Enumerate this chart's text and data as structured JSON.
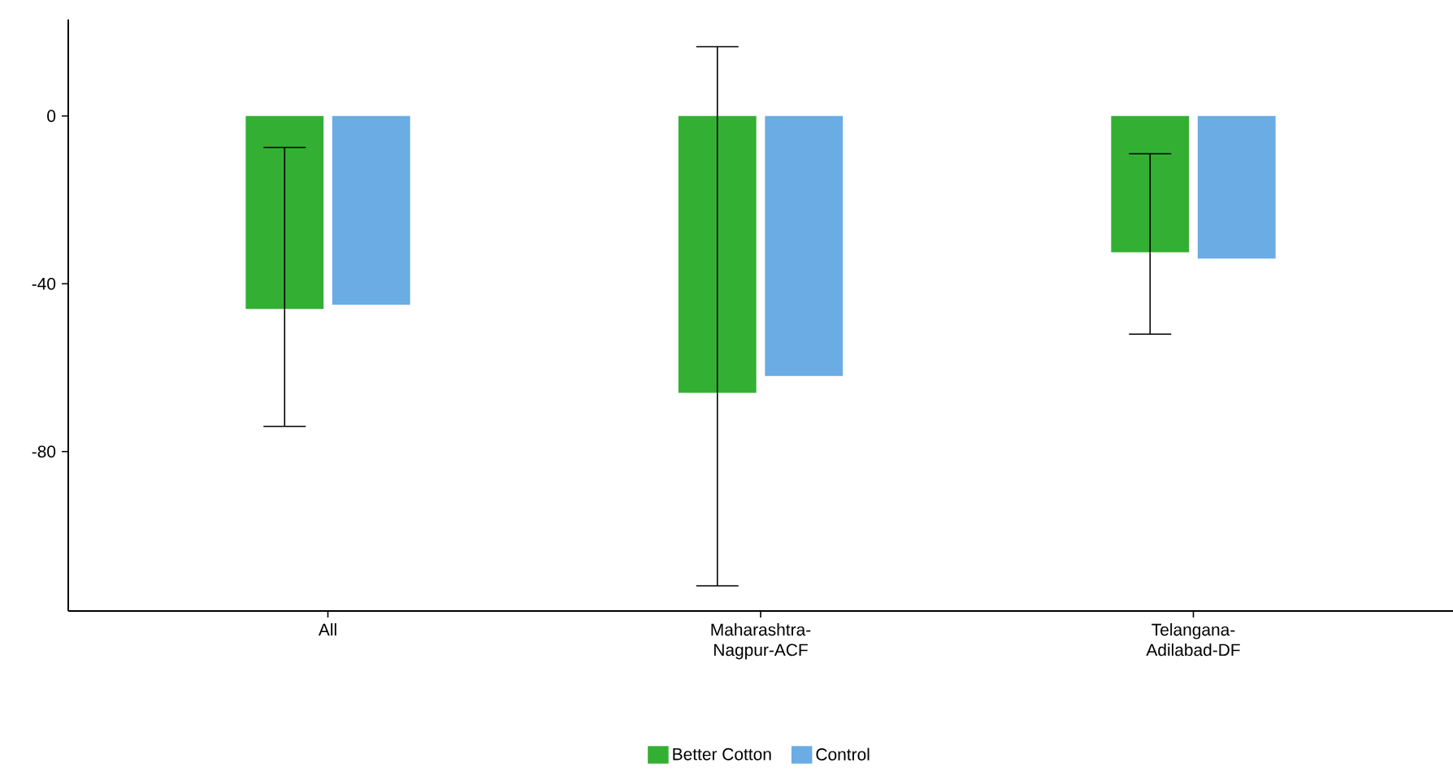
{
  "chart_data": {
    "type": "bar",
    "categories": [
      "All",
      "Maharashtra-Nagpur-ACF",
      "Telangana-Adilabad-DF"
    ],
    "series": [
      {
        "name": "Better Cotton",
        "color": "#33b033",
        "values": [
          -46,
          -66,
          -32.5
        ],
        "errors": [
          [
            -74,
            -7.5
          ],
          [
            -112,
            16.5
          ],
          [
            -52,
            -9
          ]
        ]
      },
      {
        "name": "Control",
        "color": "#6aace3",
        "values": [
          -45,
          -62,
          -34
        ]
      }
    ],
    "ylim": [
      -118,
      23
    ],
    "yticks": [
      -80,
      -40,
      0
    ],
    "grid": false,
    "legend": "bottom"
  }
}
